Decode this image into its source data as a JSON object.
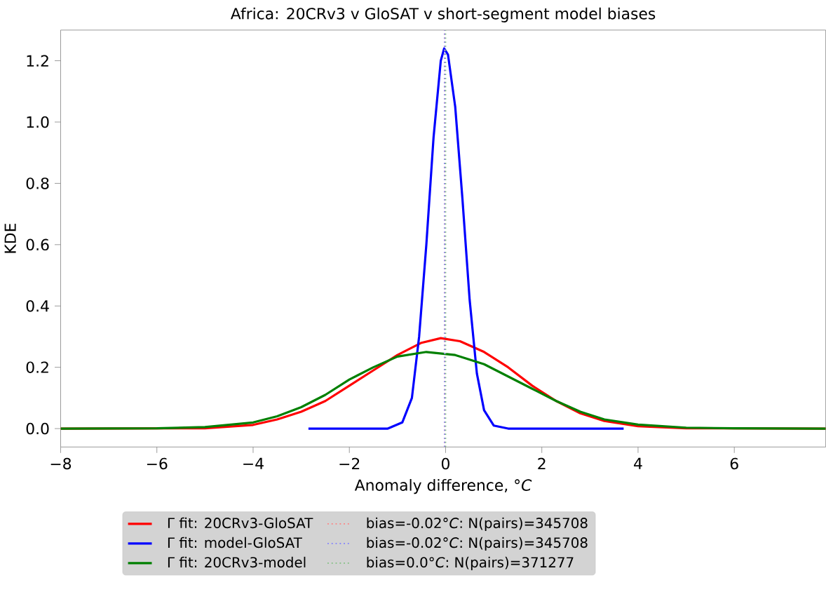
{
  "chart_data": {
    "type": "line",
    "title": "Africa: 20CRv3 v GloSAT v short-segment model biases",
    "xlabel": "Anomaly difference, °*C*",
    "ylabel": "KDE",
    "xlim": [
      -8,
      7.9
    ],
    "ylim": [
      -0.06,
      1.3
    ],
    "xticks": [
      {
        "value": -8,
        "label": "−8"
      },
      {
        "value": -6,
        "label": "−6"
      },
      {
        "value": -4,
        "label": "−4"
      },
      {
        "value": -2,
        "label": "−2"
      },
      0,
      2,
      4,
      6
    ],
    "yticks": [
      {
        "value": 0,
        "label": "0.0"
      },
      {
        "value": 0.2,
        "label": "0.2"
      },
      {
        "value": 0.4,
        "label": "0.4"
      },
      {
        "value": 0.6,
        "label": "0.6"
      },
      {
        "value": 0.8,
        "label": "0.8"
      },
      {
        "value": 1.0,
        "label": "1.0"
      },
      {
        "value": 1.2,
        "label": "1.2"
      }
    ],
    "grid": false,
    "legend": "bottom",
    "marker": "none",
    "line_style": "solid",
    "series": [
      {
        "name": "Γ fit: 20CRv3-GloSAT",
        "color": "#ff0000",
        "x": [
          -8,
          -5,
          -4,
          -3.5,
          -3,
          -2.5,
          -2,
          -1.5,
          -1,
          -0.5,
          -0.1,
          0.3,
          0.8,
          1.3,
          1.8,
          2.3,
          2.8,
          3.3,
          4,
          5,
          7.9
        ],
        "values": [
          0,
          0.001,
          0.012,
          0.03,
          0.055,
          0.09,
          0.14,
          0.19,
          0.24,
          0.28,
          0.295,
          0.285,
          0.25,
          0.2,
          0.14,
          0.09,
          0.05,
          0.025,
          0.008,
          0.001,
          0
        ]
      },
      {
        "name": "Γ fit: model-GloSAT",
        "color": "#0000ff",
        "x": [
          -2.85,
          -1.2,
          -0.9,
          -0.7,
          -0.55,
          -0.4,
          -0.25,
          -0.1,
          -0.03,
          0.05,
          0.2,
          0.35,
          0.5,
          0.65,
          0.8,
          1.0,
          1.3,
          3.7
        ],
        "values": [
          0,
          0,
          0.02,
          0.1,
          0.3,
          0.6,
          0.95,
          1.2,
          1.24,
          1.22,
          1.05,
          0.75,
          0.42,
          0.18,
          0.06,
          0.01,
          0,
          0
        ]
      },
      {
        "name": "Γ fit: 20CRv3-model",
        "color": "#008000",
        "x": [
          -8,
          -6,
          -5,
          -4,
          -3.5,
          -3,
          -2.5,
          -2,
          -1.5,
          -1,
          -0.4,
          0.2,
          0.8,
          1.3,
          1.8,
          2.3,
          2.8,
          3.3,
          4,
          5,
          6,
          7.9
        ],
        "values": [
          0,
          0.001,
          0.005,
          0.02,
          0.04,
          0.07,
          0.11,
          0.16,
          0.2,
          0.235,
          0.25,
          0.24,
          0.21,
          0.17,
          0.13,
          0.09,
          0.055,
          0.03,
          0.013,
          0.003,
          0.001,
          0
        ]
      }
    ],
    "ref_lines": [
      {
        "axis": "x",
        "value": -0.02,
        "label": "bias=-0.02°*C*: N(pairs)=345708",
        "color": "#ff8080",
        "line_style": "dotted"
      },
      {
        "axis": "x",
        "value": -0.02,
        "label": "bias=-0.02°*C*: N(pairs)=345708",
        "color": "#8080ff",
        "line_style": "dotted"
      },
      {
        "axis": "x",
        "value": 0.0,
        "label": "bias=0.0°*C*: N(pairs)=371277",
        "color": "#80c080",
        "line_style": "dotted"
      }
    ]
  }
}
